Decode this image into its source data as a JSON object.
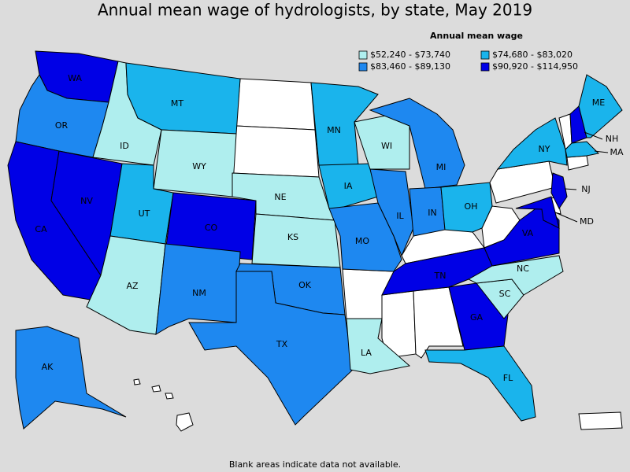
{
  "title": "Annual mean wage of hydrologists, by state, May 2019",
  "legend": {
    "title": "Annual mean wage",
    "items": [
      {
        "label": "$52,240 - $73,740",
        "color": "#afeeee"
      },
      {
        "label": "$74,680 - $83,020",
        "color": "#1ab4ec"
      },
      {
        "label": "$83,460 - $89,130",
        "color": "#1e88f0"
      },
      {
        "label": "$90,920 - $114,950",
        "color": "#0000e6"
      }
    ]
  },
  "states": [
    {
      "abbr": "WA",
      "color": "#0000e6"
    },
    {
      "abbr": "OR",
      "color": "#1e88f0"
    },
    {
      "abbr": "CA",
      "color": "#0000e6"
    },
    {
      "abbr": "NV",
      "color": "#0000e6"
    },
    {
      "abbr": "ID",
      "color": "#afeeee"
    },
    {
      "abbr": "MT",
      "color": "#1ab4ec"
    },
    {
      "abbr": "WY",
      "color": "#afeeee"
    },
    {
      "abbr": "UT",
      "color": "#1ab4ec"
    },
    {
      "abbr": "CO",
      "color": "#0000e6"
    },
    {
      "abbr": "AZ",
      "color": "#afeeee"
    },
    {
      "abbr": "NM",
      "color": "#1e88f0"
    },
    {
      "abbr": "NE",
      "color": "#afeeee"
    },
    {
      "abbr": "KS",
      "color": "#afeeee"
    },
    {
      "abbr": "OK",
      "color": "#1e88f0"
    },
    {
      "abbr": "TX",
      "color": "#1e88f0"
    },
    {
      "abbr": "MN",
      "color": "#1ab4ec"
    },
    {
      "abbr": "IA",
      "color": "#1ab4ec"
    },
    {
      "abbr": "MO",
      "color": "#1e88f0"
    },
    {
      "abbr": "LA",
      "color": "#afeeee"
    },
    {
      "abbr": "WI",
      "color": "#afeeee"
    },
    {
      "abbr": "IL",
      "color": "#1e88f0"
    },
    {
      "abbr": "MI",
      "color": "#1e88f0"
    },
    {
      "abbr": "IN",
      "color": "#1e88f0"
    },
    {
      "abbr": "OH",
      "color": "#1ab4ec"
    },
    {
      "abbr": "TN",
      "color": "#0000e6"
    },
    {
      "abbr": "GA",
      "color": "#0000e6"
    },
    {
      "abbr": "FL",
      "color": "#1ab4ec"
    },
    {
      "abbr": "SC",
      "color": "#afeeee"
    },
    {
      "abbr": "NC",
      "color": "#afeeee"
    },
    {
      "abbr": "VA",
      "color": "#0000e6"
    },
    {
      "abbr": "NY",
      "color": "#1ab4ec"
    },
    {
      "abbr": "NJ",
      "color": "#0000e6"
    },
    {
      "abbr": "MD",
      "color": "#0000e6"
    },
    {
      "abbr": "NH",
      "color": "#0000e6"
    },
    {
      "abbr": "ME",
      "color": "#1ab4ec"
    },
    {
      "abbr": "MA",
      "color": "#1ab4ec"
    },
    {
      "abbr": "AK",
      "color": "#1e88f0"
    }
  ],
  "footnote": "Blank areas indicate data not available."
}
